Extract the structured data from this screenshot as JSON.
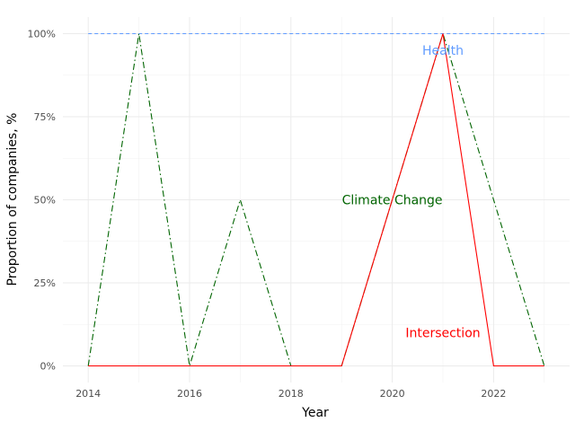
{
  "chart_data": {
    "type": "line",
    "xlabel": "Year",
    "ylabel": "Proportion of companies, %",
    "x": [
      2014,
      2015,
      2016,
      2017,
      2018,
      2019,
      2020,
      2021,
      2022,
      2023
    ],
    "xlim": [
      2013.5,
      2023.5
    ],
    "ylim": [
      -5,
      105
    ],
    "x_ticks": [
      2014,
      2016,
      2018,
      2020,
      2022
    ],
    "y_ticks": [
      0,
      25,
      50,
      75,
      100
    ],
    "y_tick_labels": [
      "0%",
      "25%",
      "50%",
      "75%",
      "100%"
    ],
    "grid": true,
    "series": [
      {
        "name": "Health",
        "color": "#619CFF",
        "dash": "dashed",
        "values": [
          100,
          100,
          100,
          100,
          100,
          100,
          100,
          100,
          100,
          100
        ],
        "label_at": [
          2021,
          95
        ]
      },
      {
        "name": "Climate Change",
        "color": "#006400",
        "dash": "dashdot",
        "values": [
          0,
          100,
          0,
          50,
          0,
          0,
          50,
          100,
          50,
          0
        ],
        "label_at": [
          2020,
          50
        ]
      },
      {
        "name": "Intersection",
        "color": "#FF0000",
        "dash": "solid",
        "values": [
          0,
          0,
          0,
          0,
          0,
          0,
          50,
          100,
          0,
          0
        ],
        "label_at": [
          2021,
          10
        ]
      }
    ]
  }
}
